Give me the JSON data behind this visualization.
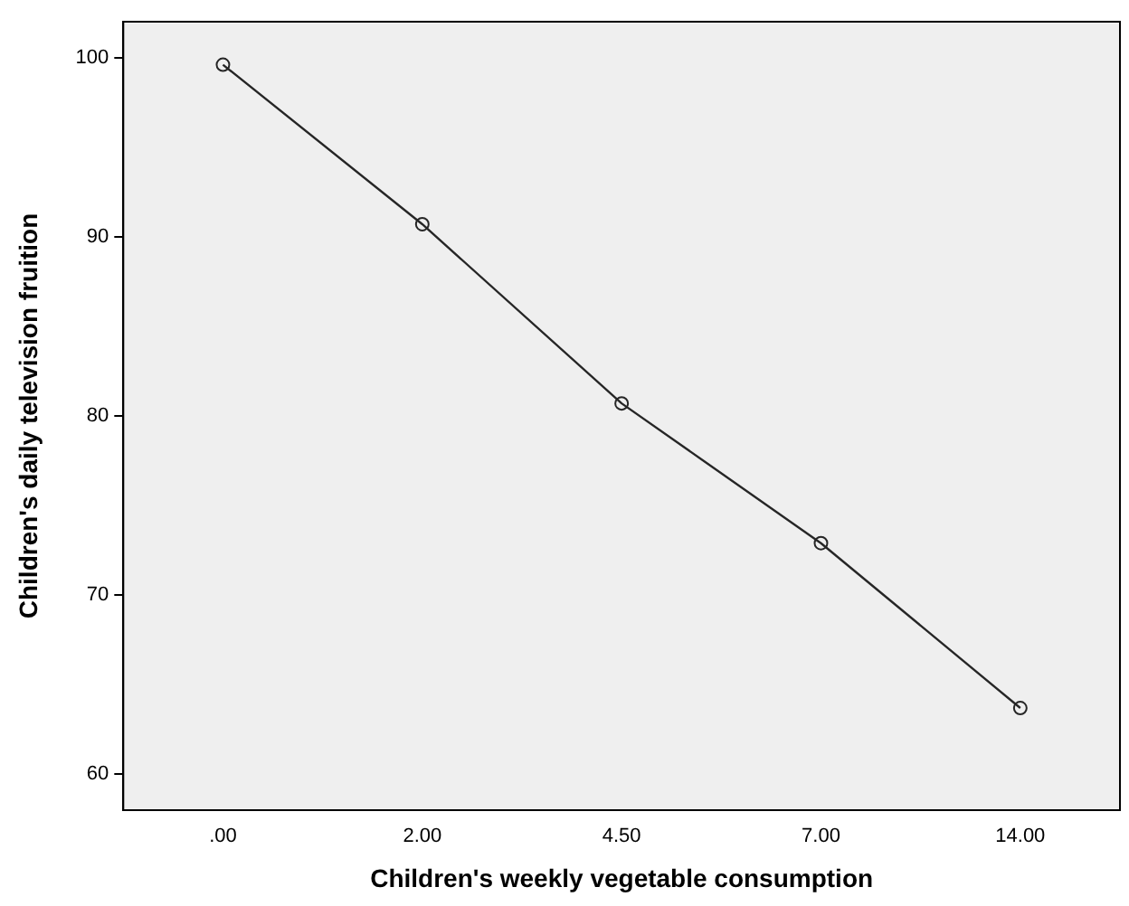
{
  "chart_data": {
    "type": "line",
    "xlabel": "Children's weekly vegetable consumption",
    "ylabel": "Children's daily television fruition",
    "categories": [
      ".00",
      "2.00",
      "4.50",
      "7.00",
      "14.00"
    ],
    "values": [
      99.6,
      90.7,
      80.7,
      72.9,
      63.7
    ],
    "color": "#262626",
    "ylim": [
      58,
      102
    ],
    "yticks": [
      60,
      70,
      80,
      90,
      100
    ],
    "grid": false,
    "legend": false,
    "marker": "circle",
    "line_style": "solid"
  }
}
